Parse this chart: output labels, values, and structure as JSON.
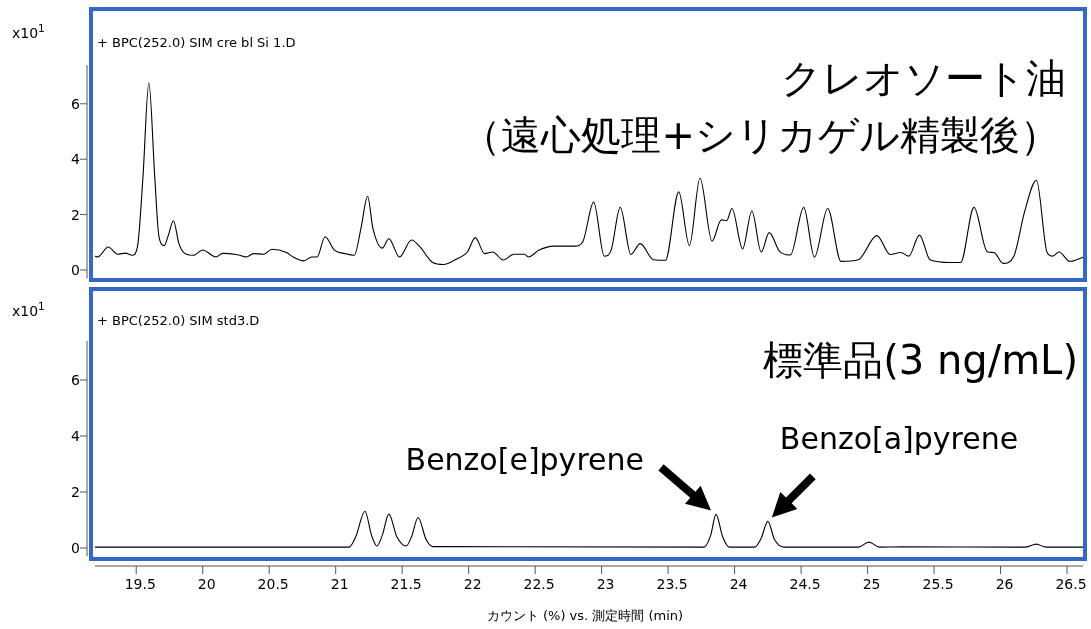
{
  "chart_data": [
    {
      "type": "line",
      "ylabel": "x10$^{1}$",
      "xlim": [
        19.19,
        26.62
      ],
      "ylim": [
        -0.3,
        7.4
      ],
      "yticks": [
        0,
        2,
        4,
        6
      ],
      "tick_labels": "y",
      "annotations": [
        "+ BPC(252.0) SIM cre bl Si 1.D",
        "クレオソート油",
        "（遠心処理+シリカゲル精製後）"
      ],
      "series": [
        {
          "color": "#000000",
          "x": [
            19.19,
            19.21,
            19.29,
            19.36,
            19.42,
            19.47,
            19.51,
            19.55,
            19.595,
            19.64,
            19.67,
            19.71,
            19.74,
            19.78,
            19.82,
            19.86,
            19.93,
            20.0,
            20.1,
            20.15,
            20.26,
            20.33,
            20.38,
            20.46,
            20.52,
            20.63,
            20.68,
            20.76,
            20.82,
            20.86,
            20.92,
            20.99,
            21.07,
            21.14,
            21.19,
            21.24,
            21.28,
            21.35,
            21.4,
            21.48,
            21.57,
            21.63,
            21.73,
            21.81,
            21.91,
            21.99,
            22.05,
            22.12,
            22.18,
            22.26,
            22.34,
            22.42,
            22.45,
            22.53,
            22.64,
            22.8,
            22.86,
            22.94,
            23.02,
            23.07,
            23.14,
            23.22,
            23.29,
            23.39,
            23.48,
            23.58,
            23.66,
            23.74,
            23.83,
            23.9,
            23.94,
            23.98,
            24.06,
            24.13,
            24.2,
            24.26,
            24.34,
            24.42,
            24.52,
            24.6,
            24.7,
            24.8,
            24.93,
            25.07,
            25.17,
            25.25,
            25.31,
            25.39,
            25.47,
            25.62,
            25.7,
            25.8,
            25.9,
            25.95,
            26.02,
            26.1,
            26.18,
            26.27,
            26.35,
            26.39,
            26.44,
            26.52,
            26.62
          ],
          "values": [
            0.5,
            0.47,
            0.83,
            0.57,
            0.61,
            0.53,
            0.86,
            3.3,
            6.75,
            3.3,
            1.23,
            0.88,
            1.23,
            1.78,
            0.97,
            0.62,
            0.53,
            0.72,
            0.47,
            0.6,
            0.55,
            0.47,
            0.59,
            0.57,
            0.75,
            0.63,
            0.47,
            0.33,
            0.47,
            0.47,
            1.2,
            0.72,
            0.59,
            0.53,
            1.5,
            2.66,
            1.5,
            0.79,
            1.13,
            0.47,
            1.08,
            0.86,
            0.27,
            0.2,
            0.4,
            0.65,
            1.17,
            0.59,
            0.65,
            0.36,
            0.57,
            0.57,
            0.47,
            0.72,
            0.86,
            0.86,
            1.04,
            2.45,
            0.5,
            0.69,
            2.26,
            0.56,
            0.95,
            0.37,
            0.35,
            2.82,
            0.88,
            3.31,
            1.04,
            1.81,
            1.78,
            2.22,
            0.76,
            2.13,
            0.65,
            1.35,
            0.66,
            0.54,
            2.26,
            0.46,
            2.22,
            0.31,
            0.37,
            1.24,
            0.56,
            0.63,
            0.5,
            1.26,
            0.37,
            0.27,
            0.27,
            2.26,
            0.66,
            0.63,
            0.24,
            0.5,
            2.09,
            3.24,
            0.63,
            0.5,
            0.65,
            0.31,
            0.46
          ]
        }
      ]
    },
    {
      "type": "line",
      "ylabel": "x10$^{1}$",
      "xlabel": "カウント (%) vs. 測定時間 (min)",
      "xlim": [
        19.19,
        26.62
      ],
      "ylim": [
        -0.3,
        7.4
      ],
      "yticks": [
        0,
        2,
        4,
        6
      ],
      "xticks": [
        19.5,
        20,
        20.5,
        21,
        21.5,
        22,
        22.5,
        23,
        23.5,
        24,
        24.5,
        25,
        25.5,
        26,
        26.5
      ],
      "annotations": [
        "+ BPC(252.0) SIM std3.D",
        "標準品(3 ng/mL)",
        {
          "text": "Benzo[e]pyrene",
          "x": 23.86,
          "y": 1.2
        },
        {
          "text": "Benzo[a]pyrene",
          "x": 24.25,
          "y": 0.95
        }
      ],
      "series": [
        {
          "color": "#000000",
          "x": [
            19.19,
            21.1,
            21.15,
            21.22,
            21.27,
            21.31,
            21.35,
            21.4,
            21.46,
            21.53,
            21.57,
            21.62,
            21.68,
            21.73,
            23.77,
            23.82,
            23.86,
            23.91,
            23.96,
            24.15,
            24.2,
            24.25,
            24.3,
            24.37,
            24.93,
            25.01,
            25.09,
            25.25,
            26.19,
            26.27,
            26.34,
            26.62
          ],
          "values": [
            0.03,
            0.03,
            0.39,
            1.31,
            0.45,
            0.07,
            0.45,
            1.21,
            0.4,
            0.07,
            0.4,
            1.09,
            0.3,
            0.05,
            0.03,
            0.45,
            1.2,
            0.4,
            0.03,
            0.03,
            0.35,
            0.95,
            0.3,
            0.03,
            0.03,
            0.21,
            0.03,
            0.04,
            0.03,
            0.14,
            0.03,
            0.03
          ]
        }
      ]
    }
  ]
}
